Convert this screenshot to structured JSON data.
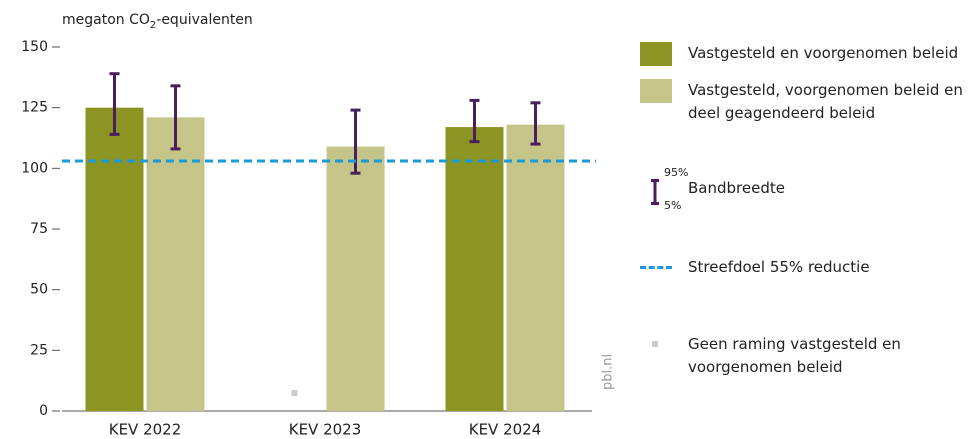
{
  "chart_data": {
    "type": "bar",
    "ylabel": [
      "megaton CO",
      "2",
      "-equivalenten"
    ],
    "categories": [
      "KEV 2022",
      "KEV 2023",
      "KEV 2024"
    ],
    "series": [
      {
        "name": "Vastgesteld en voorgenomen beleid",
        "color": "#8c9424",
        "values": [
          125,
          null,
          117
        ],
        "errors": [
          [
            114,
            139
          ],
          null,
          [
            111,
            128
          ]
        ]
      },
      {
        "name": "Vastgesteld, voorgenomen beleid en deel geagendeerd beleid",
        "color": "#c5c589",
        "values": [
          121,
          109,
          118
        ],
        "errors": [
          [
            108,
            134
          ],
          [
            98,
            124
          ],
          [
            110,
            127
          ]
        ]
      }
    ],
    "error_color": "#4a1f5e",
    "error_legend": {
      "high": "95%",
      "low": "5%",
      "label": "Bandbreedte"
    },
    "target": {
      "name": "Streefdoel 55% reductie",
      "value": 103,
      "color": "#1a9bd7"
    },
    "no_estimate": {
      "name": "Geen raming vastgesteld en voorgenomen beleid",
      "color": "#cccccc"
    },
    "source": "pbl.nl",
    "ylim": [
      0,
      150
    ],
    "yticks": [
      0,
      25,
      50,
      75,
      100,
      125,
      150
    ],
    "grid": false
  }
}
